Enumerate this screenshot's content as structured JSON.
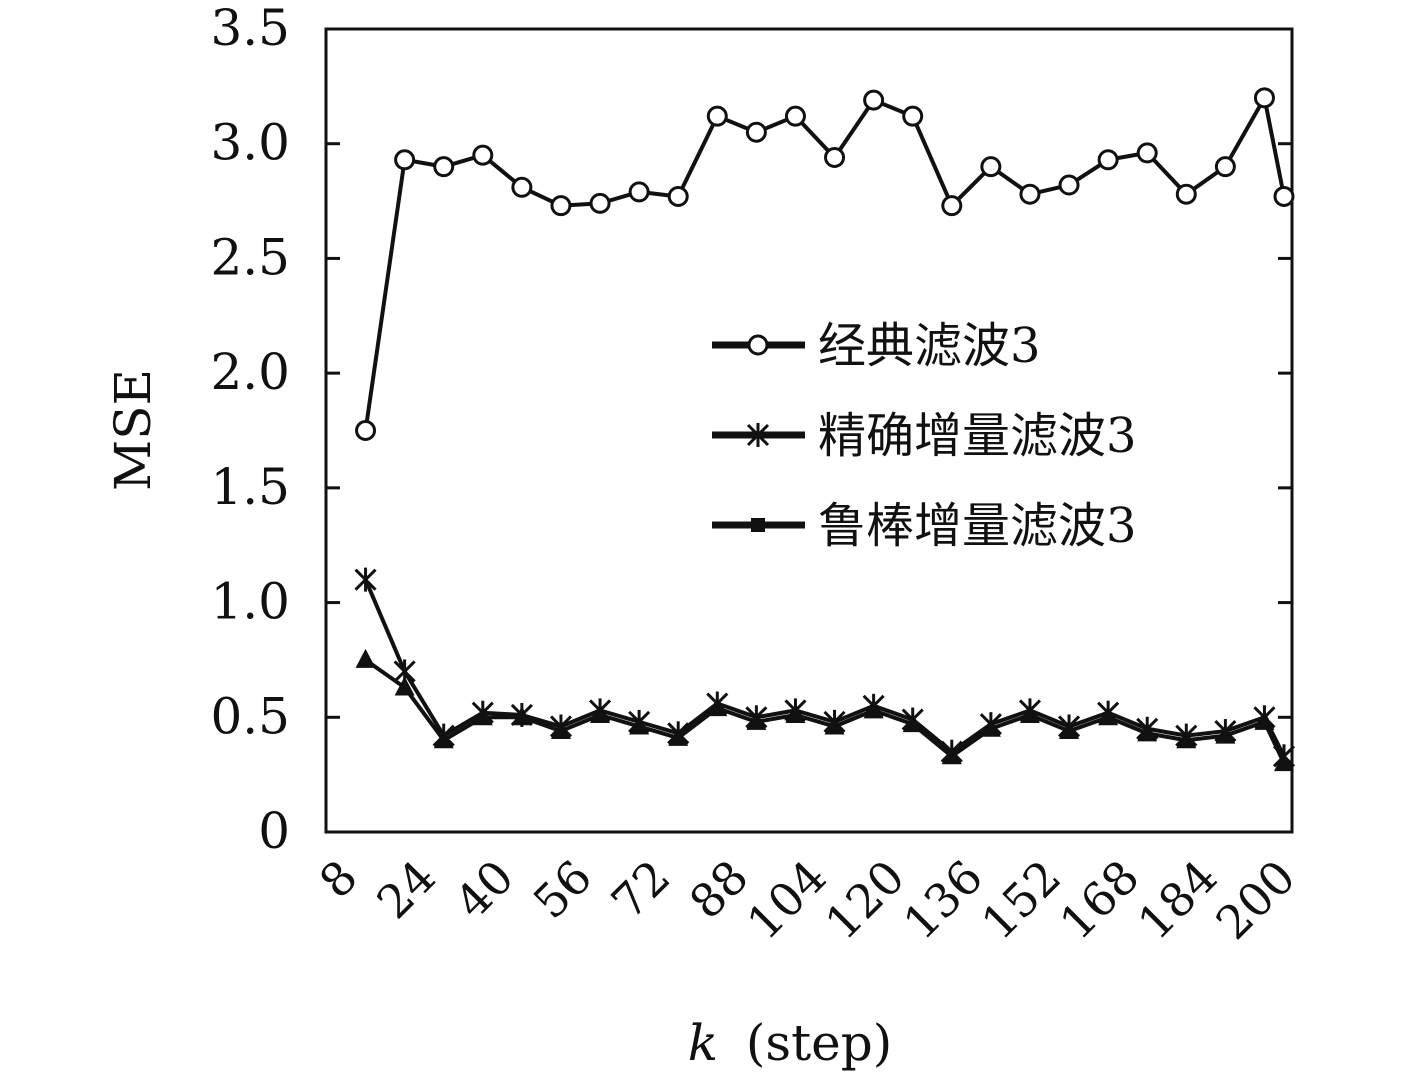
{
  "chart_data": {
    "type": "line",
    "xlabel": "k (step)",
    "xlabel_var": "k",
    "xlabel_unit": "(step)",
    "ylabel": "MSE",
    "ylim": [
      0,
      3.5
    ],
    "xlim": [
      8,
      200
    ],
    "x_ticks": [
      "8",
      "24",
      "40",
      "56",
      "72",
      "88",
      "104",
      "120",
      "136",
      "152",
      "168",
      "184",
      "200"
    ],
    "y_ticks": [
      "0",
      "0.5",
      "1.0",
      "1.5",
      "2.0",
      "2.5",
      "3.0",
      "3.5"
    ],
    "legend_position": "center-right",
    "grid": false,
    "colors": {
      "line": "#111111",
      "axis": "#111111",
      "background": "#ffffff"
    },
    "x": [
      12,
      20,
      28,
      36,
      44,
      52,
      60,
      68,
      76,
      84,
      92,
      100,
      108,
      116,
      124,
      132,
      140,
      148,
      156,
      164,
      172,
      180,
      188,
      196
    ],
    "series": [
      {
        "name": "经典滤波3",
        "marker": "open-circle",
        "values": [
          1.75,
          2.93,
          2.9,
          2.95,
          2.81,
          2.73,
          2.74,
          2.79,
          2.77,
          3.12,
          3.05,
          3.12,
          2.94,
          3.19,
          3.12,
          2.73,
          2.9,
          2.78,
          2.82,
          2.93,
          2.96,
          2.78,
          2.9,
          3.2
        ]
      },
      {
        "name": "精确增量滤波3",
        "marker": "asterisk",
        "values": [
          1.1,
          0.7,
          0.42,
          0.52,
          0.51,
          0.46,
          0.53,
          0.48,
          0.43,
          0.56,
          0.5,
          0.53,
          0.48,
          0.55,
          0.49,
          0.35,
          0.47,
          0.53,
          0.46,
          0.52,
          0.45,
          0.42,
          0.44,
          0.5
        ]
      },
      {
        "name": "鲁棒增量滤波3",
        "marker": "filled-triangle",
        "values": [
          0.75,
          0.63,
          0.4,
          0.5,
          0.5,
          0.44,
          0.51,
          0.46,
          0.41,
          0.54,
          0.48,
          0.51,
          0.46,
          0.53,
          0.47,
          0.33,
          0.45,
          0.51,
          0.44,
          0.5,
          0.43,
          0.4,
          0.42,
          0.48
        ]
      }
    ],
    "last_point": {
      "x": 200,
      "values": [
        2.77,
        0.33,
        0.3
      ]
    }
  }
}
